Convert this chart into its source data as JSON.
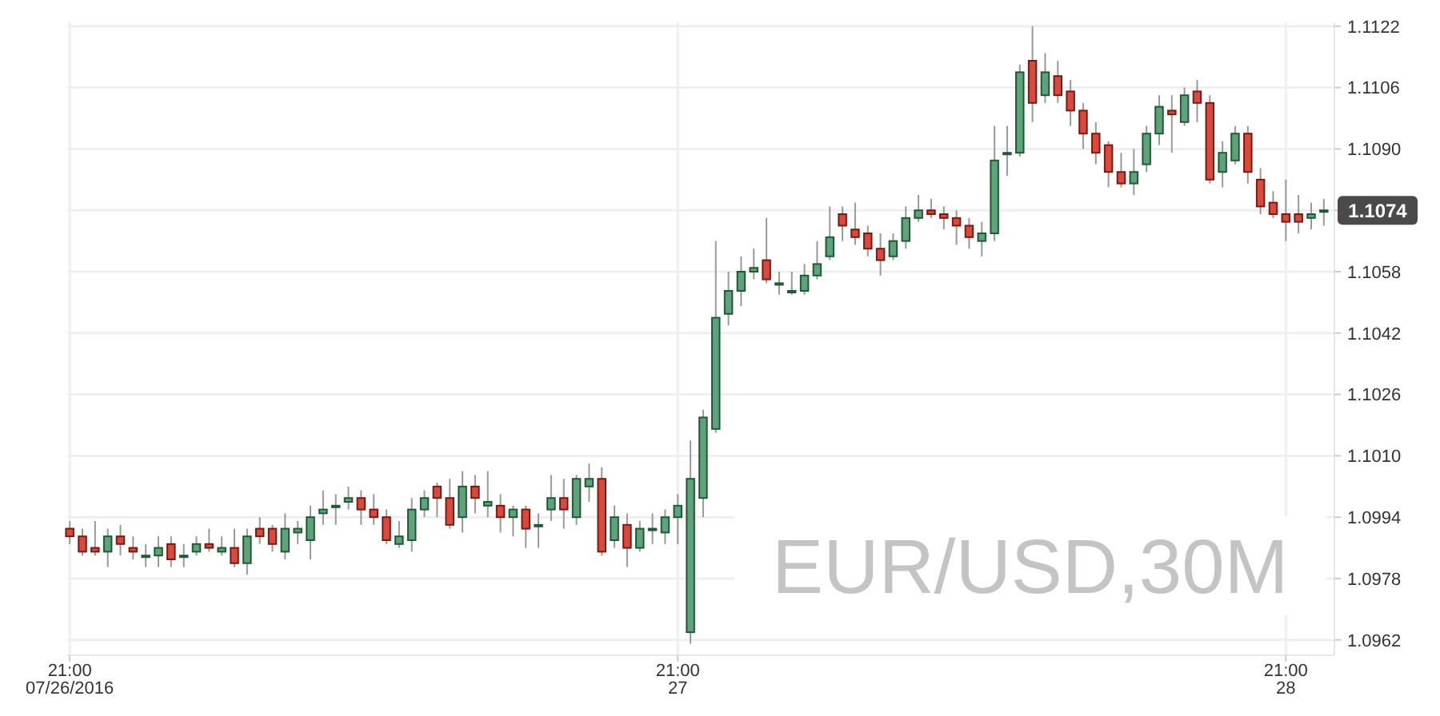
{
  "chart_data": {
    "type": "candlestick",
    "title": "EUR/USD,30M",
    "x": [
      "2016-07-26T21:00",
      "2016-07-26T21:30",
      "2016-07-26T22:00",
      "2016-07-26T22:30",
      "2016-07-26T23:00",
      "2016-07-26T23:30",
      "2016-07-27T00:00",
      "2016-07-27T00:30",
      "2016-07-27T01:00",
      "2016-07-27T01:30",
      "2016-07-27T02:00",
      "2016-07-27T02:30",
      "2016-07-27T03:00",
      "2016-07-27T03:30",
      "2016-07-27T04:00",
      "2016-07-27T04:30",
      "2016-07-27T05:00",
      "2016-07-27T05:30",
      "2016-07-27T06:00",
      "2016-07-27T06:30",
      "2016-07-27T07:00",
      "2016-07-27T07:30",
      "2016-07-27T08:00",
      "2016-07-27T08:30",
      "2016-07-27T09:00",
      "2016-07-27T09:30",
      "2016-07-27T10:00",
      "2016-07-27T10:30",
      "2016-07-27T11:00",
      "2016-07-27T11:30",
      "2016-07-27T12:00",
      "2016-07-27T12:30",
      "2016-07-27T13:00",
      "2016-07-27T13:30",
      "2016-07-27T14:00",
      "2016-07-27T14:30",
      "2016-07-27T15:00",
      "2016-07-27T15:30",
      "2016-07-27T16:00",
      "2016-07-27T16:30",
      "2016-07-27T17:00",
      "2016-07-27T17:30",
      "2016-07-27T18:00",
      "2016-07-27T18:30",
      "2016-07-27T19:00",
      "2016-07-27T19:30",
      "2016-07-27T20:00",
      "2016-07-27T20:30",
      "2016-07-27T21:00",
      "2016-07-27T21:30",
      "2016-07-27T22:00",
      "2016-07-27T22:30",
      "2016-07-27T23:00",
      "2016-07-27T23:30",
      "2016-07-28T00:00",
      "2016-07-28T00:30",
      "2016-07-28T01:00",
      "2016-07-28T01:30",
      "2016-07-28T02:00",
      "2016-07-28T02:30",
      "2016-07-28T03:00",
      "2016-07-28T03:30",
      "2016-07-28T04:00",
      "2016-07-28T04:30",
      "2016-07-28T05:00",
      "2016-07-28T05:30",
      "2016-07-28T06:00",
      "2016-07-28T06:30",
      "2016-07-28T07:00",
      "2016-07-28T07:30",
      "2016-07-28T08:00",
      "2016-07-28T08:30",
      "2016-07-28T09:00",
      "2016-07-28T09:30",
      "2016-07-28T10:00",
      "2016-07-28T10:30",
      "2016-07-28T11:00",
      "2016-07-28T11:30",
      "2016-07-28T12:00",
      "2016-07-28T12:30",
      "2016-07-28T13:00",
      "2016-07-28T13:30",
      "2016-07-28T14:00",
      "2016-07-28T14:30",
      "2016-07-28T15:00",
      "2016-07-28T15:30",
      "2016-07-28T16:00",
      "2016-07-28T16:30",
      "2016-07-28T17:00",
      "2016-07-28T17:30",
      "2016-07-28T18:00",
      "2016-07-28T18:30",
      "2016-07-28T19:00",
      "2016-07-28T19:30",
      "2016-07-28T20:00",
      "2016-07-28T20:30",
      "2016-07-28T21:00",
      "2016-07-28T21:30",
      "2016-07-28T22:00",
      "2016-07-28T22:30"
    ],
    "ohlc": [
      [
        1.0991,
        1.0993,
        1.0987,
        1.0989
      ],
      [
        1.0989,
        1.0991,
        1.0984,
        1.0985
      ],
      [
        1.0986,
        1.0993,
        1.0984,
        1.0985
      ],
      [
        1.0985,
        1.0991,
        1.0981,
        1.0989
      ],
      [
        1.0989,
        1.0992,
        1.0984,
        1.0987
      ],
      [
        1.0986,
        1.0989,
        1.0983,
        1.0985
      ],
      [
        1.0984,
        1.0987,
        1.0981,
        1.0984
      ],
      [
        1.0984,
        1.0989,
        1.0981,
        1.0986
      ],
      [
        1.0987,
        1.0989,
        1.0981,
        1.0983
      ],
      [
        1.0984,
        1.0987,
        1.0981,
        1.0984
      ],
      [
        1.0985,
        1.0989,
        1.0984,
        1.0987
      ],
      [
        1.0987,
        1.0991,
        1.0985,
        1.0986
      ],
      [
        1.0985,
        1.0989,
        1.0984,
        1.0986
      ],
      [
        1.0986,
        1.0991,
        1.0981,
        1.0982
      ],
      [
        1.0982,
        1.0991,
        1.0979,
        1.0989
      ],
      [
        1.0991,
        1.0994,
        1.0987,
        1.0989
      ],
      [
        1.0991,
        1.0992,
        1.0985,
        1.0987
      ],
      [
        1.0985,
        1.0995,
        1.0983,
        1.0991
      ],
      [
        1.099,
        1.0993,
        1.0987,
        1.0991
      ],
      [
        1.0988,
        1.0997,
        1.0983,
        1.0994
      ],
      [
        1.0995,
        1.1001,
        1.0992,
        1.0996
      ],
      [
        1.0997,
        1.1,
        1.0992,
        1.0997
      ],
      [
        1.0998,
        1.1002,
        1.0996,
        1.0999
      ],
      [
        1.0999,
        1.1001,
        1.0992,
        1.0996
      ],
      [
        1.0996,
        1.1,
        1.0992,
        1.0994
      ],
      [
        1.0994,
        1.0996,
        1.0987,
        1.0988
      ],
      [
        1.0987,
        1.0993,
        1.0986,
        1.0989
      ],
      [
        1.0988,
        1.0999,
        1.0985,
        1.0996
      ],
      [
        1.0996,
        1.1001,
        1.0994,
        1.0999
      ],
      [
        1.1002,
        1.1003,
        1.0994,
        1.0999
      ],
      [
        1.0999,
        1.1004,
        1.0991,
        1.0992
      ],
      [
        1.0994,
        1.1006,
        1.099,
        1.1002
      ],
      [
        1.1002,
        1.1005,
        1.0995,
        1.0999
      ],
      [
        1.0997,
        1.1006,
        1.0994,
        1.0998
      ],
      [
        1.0997,
        1.1,
        1.099,
        1.0994
      ],
      [
        1.0994,
        1.0997,
        1.0989,
        1.0996
      ],
      [
        1.0996,
        1.0997,
        1.0986,
        1.0991
      ],
      [
        1.0992,
        1.0995,
        1.0986,
        1.0992
      ],
      [
        1.0996,
        1.1005,
        1.0993,
        1.0999
      ],
      [
        1.0999,
        1.1004,
        1.0991,
        1.0996
      ],
      [
        1.0994,
        1.1005,
        1.0992,
        1.1004
      ],
      [
        1.1002,
        1.1008,
        1.0998,
        1.1004
      ],
      [
        1.1004,
        1.1007,
        1.0984,
        1.0985
      ],
      [
        1.0988,
        1.0997,
        1.0986,
        1.0994
      ],
      [
        1.0992,
        1.0995,
        1.0981,
        1.0986
      ],
      [
        1.0986,
        1.0993,
        1.0985,
        1.0991
      ],
      [
        1.0991,
        1.0995,
        1.0987,
        1.0991
      ],
      [
        1.099,
        1.0996,
        1.0987,
        1.0994
      ],
      [
        1.0994,
        1.1,
        1.0987,
        1.0997
      ],
      [
        1.0964,
        1.1014,
        1.0961,
        1.1004
      ],
      [
        1.0999,
        1.1022,
        1.0994,
        1.102
      ],
      [
        1.1017,
        1.1066,
        1.1016,
        1.1046
      ],
      [
        1.1047,
        1.1058,
        1.1044,
        1.1053
      ],
      [
        1.1053,
        1.1062,
        1.1049,
        1.1058
      ],
      [
        1.1058,
        1.1064,
        1.1056,
        1.1059
      ],
      [
        1.1061,
        1.1072,
        1.1055,
        1.1056
      ],
      [
        1.1055,
        1.1058,
        1.1052,
        1.1055
      ],
      [
        1.1053,
        1.1058,
        1.1052,
        1.1053
      ],
      [
        1.1053,
        1.106,
        1.1052,
        1.1057
      ],
      [
        1.1057,
        1.1066,
        1.1056,
        1.106
      ],
      [
        1.1062,
        1.1075,
        1.1061,
        1.1067
      ],
      [
        1.1073,
        1.1075,
        1.1066,
        1.107
      ],
      [
        1.1069,
        1.1076,
        1.1065,
        1.1067
      ],
      [
        1.1068,
        1.107,
        1.1062,
        1.1064
      ],
      [
        1.1064,
        1.1068,
        1.1057,
        1.1061
      ],
      [
        1.1062,
        1.1068,
        1.1061,
        1.1066
      ],
      [
        1.1066,
        1.1075,
        1.1064,
        1.1072
      ],
      [
        1.1072,
        1.1078,
        1.1071,
        1.1074
      ],
      [
        1.1074,
        1.1077,
        1.1072,
        1.1073
      ],
      [
        1.1073,
        1.1075,
        1.1069,
        1.1072
      ],
      [
        1.1072,
        1.1074,
        1.1065,
        1.107
      ],
      [
        1.107,
        1.1072,
        1.1064,
        1.1067
      ],
      [
        1.1066,
        1.1071,
        1.1062,
        1.1068
      ],
      [
        1.1068,
        1.1096,
        1.1066,
        1.1087
      ],
      [
        1.1089,
        1.1096,
        1.1083,
        1.1089
      ],
      [
        1.1089,
        1.1112,
        1.1088,
        1.111
      ],
      [
        1.1113,
        1.1122,
        1.1097,
        1.1102
      ],
      [
        1.1104,
        1.1115,
        1.1102,
        1.111
      ],
      [
        1.1109,
        1.1113,
        1.1102,
        1.1104
      ],
      [
        1.1105,
        1.1108,
        1.1096,
        1.11
      ],
      [
        1.11,
        1.1102,
        1.109,
        1.1094
      ],
      [
        1.1094,
        1.1097,
        1.1086,
        1.1089
      ],
      [
        1.1091,
        1.1092,
        1.108,
        1.1084
      ],
      [
        1.1084,
        1.1089,
        1.108,
        1.1081
      ],
      [
        1.1081,
        1.109,
        1.1078,
        1.1084
      ],
      [
        1.1086,
        1.1096,
        1.1084,
        1.1094
      ],
      [
        1.1094,
        1.1104,
        1.1091,
        1.1101
      ],
      [
        1.11,
        1.1104,
        1.1089,
        1.1099
      ],
      [
        1.1097,
        1.1106,
        1.1096,
        1.1104
      ],
      [
        1.1105,
        1.1108,
        1.1097,
        1.1102
      ],
      [
        1.1102,
        1.1104,
        1.1081,
        1.1082
      ],
      [
        1.1084,
        1.1092,
        1.108,
        1.1089
      ],
      [
        1.1087,
        1.1096,
        1.1086,
        1.1094
      ],
      [
        1.1094,
        1.1096,
        1.1081,
        1.1084
      ],
      [
        1.1082,
        1.1085,
        1.1073,
        1.1075
      ],
      [
        1.1076,
        1.1079,
        1.1072,
        1.1073
      ],
      [
        1.1073,
        1.1082,
        1.1066,
        1.1071
      ],
      [
        1.1073,
        1.1078,
        1.1068,
        1.1071
      ],
      [
        1.1072,
        1.1076,
        1.1069,
        1.1073
      ],
      [
        1.1074,
        1.1077,
        1.107,
        1.1074
      ]
    ],
    "xlim": [
      "2016-07-26T20:54",
      "2016-07-28T22:55"
    ],
    "xticks": [
      {
        "value": "2016-07-26T21:00",
        "label": "21:00\n07/26/2016"
      },
      {
        "value": "2016-07-27T21:00",
        "label": "21:00\n27"
      },
      {
        "value": "2016-07-28T21:00",
        "label": "21:00\n28"
      }
    ],
    "ylim": [
      1.0958,
      1.1123
    ],
    "yticks": [
      1.0962,
      1.0978,
      1.0994,
      {
        "value": 1.101,
        "label": "1.1010"
      },
      1.1026,
      1.1042,
      1.1058,
      {
        "value": 1.1074,
        "label": null
      },
      {
        "value": 1.109,
        "label": "1.1090"
      },
      1.1106,
      1.1122
    ],
    "grid": true,
    "annotations": [
      "1.1074"
    ]
  }
}
